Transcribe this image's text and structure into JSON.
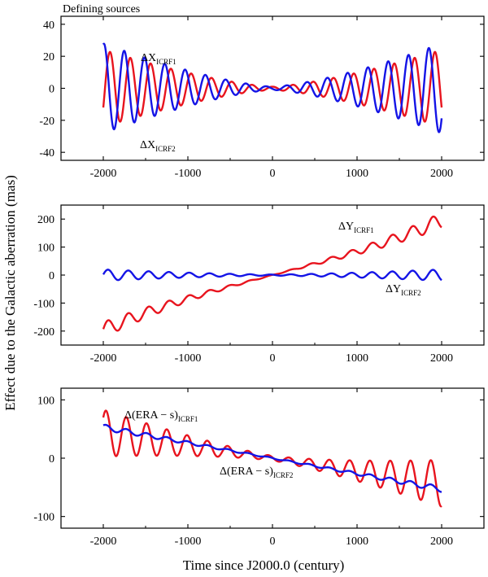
{
  "figure": {
    "title": "Defining sources",
    "xlabel": "Time since J2000.0 (century)",
    "ylabel": "Effect due to the Galactic aberration (mas)"
  },
  "colors": {
    "icrf1": "#e8141e",
    "icrf2": "#1414e6",
    "axis": "#000000"
  },
  "chart_data": [
    {
      "type": "line",
      "panel": "top",
      "xlim": [
        -2500,
        2500
      ],
      "ylim": [
        -45,
        45
      ],
      "xticks": [
        -2000,
        -1000,
        0,
        1000,
        2000
      ],
      "yticks": [
        -40,
        -20,
        0,
        20,
        40
      ],
      "series": [
        {
          "name": "ICRF1",
          "color": "#e8141e",
          "model": "osc",
          "offset": 0,
          "trend": 0,
          "amp_end": 24,
          "period": 240,
          "phase": 0.0,
          "label_main": "ΔX",
          "label_sub": "ICRF1"
        },
        {
          "name": "ICRF2",
          "color": "#1414e6",
          "model": "osc",
          "offset": 0,
          "trend": 0,
          "amp_end": 28,
          "period": 240,
          "phase": 0.3,
          "env_shift": 4,
          "label_main": "ΔX",
          "label_sub": "ICRF2"
        }
      ]
    },
    {
      "type": "line",
      "panel": "middle",
      "xlim": [
        -2500,
        2500
      ],
      "ylim": [
        -250,
        250
      ],
      "xticks": [
        -2000,
        -1000,
        0,
        1000,
        2000
      ],
      "yticks": [
        -200,
        -100,
        0,
        100,
        200
      ],
      "series": [
        {
          "name": "ICRF1",
          "color": "#e8141e",
          "model": "trend_osc",
          "trend": 0.08,
          "cubic": 4.5e-09,
          "amp_end": 28,
          "period": 240,
          "phase": 0.1,
          "label_main": "ΔY",
          "label_sub": "ICRF1"
        },
        {
          "name": "ICRF2",
          "color": "#1414e6",
          "model": "osc",
          "trend": 0,
          "amp_end": 20,
          "amp_min": 2,
          "period": 240,
          "phase": 0.1,
          "label_main": "ΔY",
          "label_sub": "ICRF2"
        }
      ]
    },
    {
      "type": "line",
      "panel": "bottom",
      "xlim": [
        -2500,
        2500
      ],
      "ylim": [
        -120,
        120
      ],
      "xticks": [
        -2000,
        -1000,
        0,
        1000,
        2000
      ],
      "yticks": [
        -100,
        0,
        100
      ],
      "series": [
        {
          "name": "ICRF1",
          "color": "#e8141e",
          "model": "trend_osc",
          "trend": -0.0215,
          "amp_end": 40,
          "amp_min": 4,
          "period": 240,
          "phase": 0.2,
          "label_main": "Δ(ERA − s)",
          "label_sub": "ICRF1"
        },
        {
          "name": "ICRF2",
          "color": "#1414e6",
          "model": "trend_osc",
          "trend": -0.0265,
          "amp_end": 5,
          "amp_min": 1,
          "period": 240,
          "phase": 0.2,
          "label_main": "Δ(ERA − s)",
          "label_sub": "ICRF2"
        }
      ]
    }
  ]
}
